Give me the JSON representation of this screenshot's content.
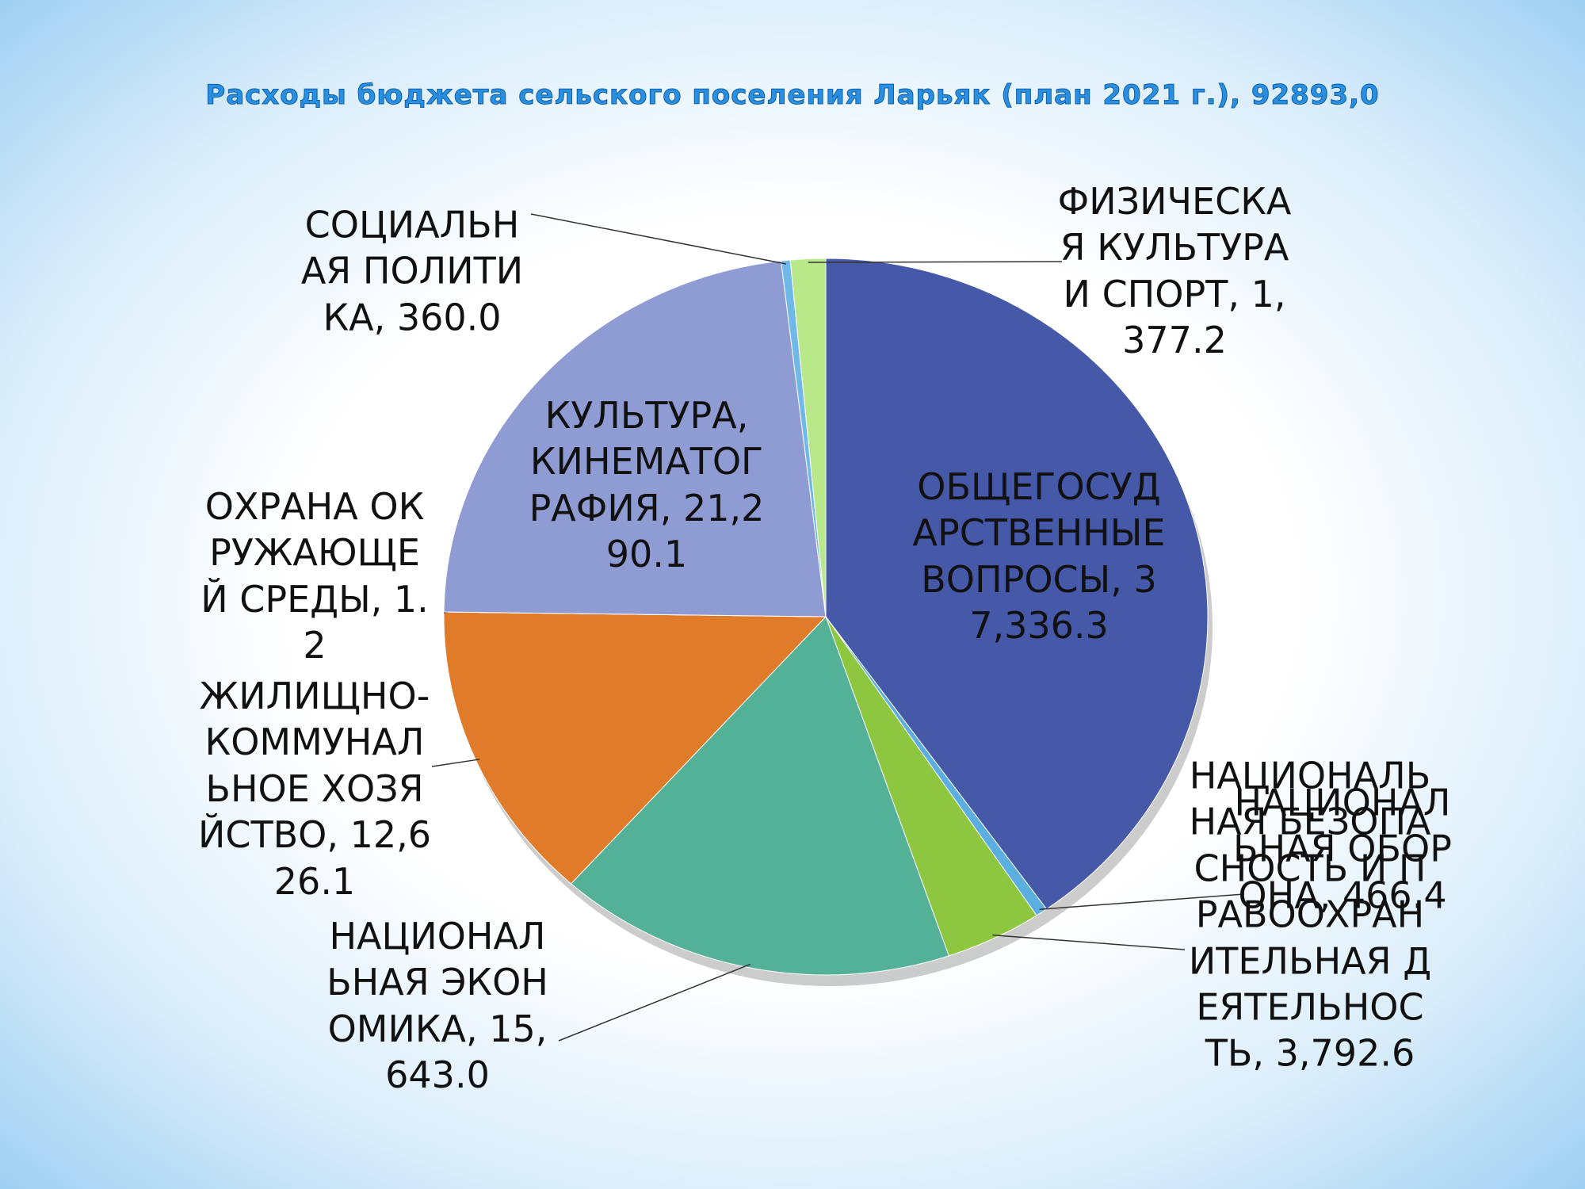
{
  "chart_data": {
    "type": "pie",
    "title": "Расходы бюджета сельского поселения Ларьяк (план 2021 г.),  92893,0",
    "categories": [
      "ОБЩЕГОСУДАРСТВЕННЫЕ ВОПРОСЫ",
      "НАЦИОНАЛЬНАЯ ОБОРОНА",
      "НАЦИОНАЛЬНАЯ БЕЗОПАСНОСТЬ И ПРАВООХРАНИТЕЛЬНАЯ ДЕЯТЕЛЬНОСТЬ",
      "НАЦИОНАЛЬНАЯ ЭКОНОМИКА",
      "ЖИЛИЩНО-КОММУНАЛЬНОЕ ХОЗЯЙСТВО",
      "ОХРАНА ОКРУЖАЮЩЕЙ СРЕДЫ",
      "КУЛЬТУРА, КИНЕМАТОГРАФИЯ",
      "СОЦИАЛЬНАЯ ПОЛИТИКА",
      "ФИЗИЧЕСКАЯ КУЛЬТУРА И СПОРТ"
    ],
    "values": [
      37336.3,
      466.4,
      3792.6,
      15643.0,
      12626.1,
      1.2,
      21290.1,
      360.0,
      1377.2
    ],
    "value_labels": [
      ", 37,336.3",
      ", 466.4",
      ", 3,792.6",
      ", 15,643.0",
      ", 12,626.1",
      ", 1.2",
      ", 21,290.1",
      ", 360.0",
      ", 1,377.2"
    ],
    "colors": [
      "#4658a8",
      "#5aaee0",
      "#8dc63f",
      "#52b196",
      "#e07b2a",
      "#c9c9c9",
      "#8f9bd3",
      "#6fb8e8",
      "#b9e88a"
    ]
  }
}
